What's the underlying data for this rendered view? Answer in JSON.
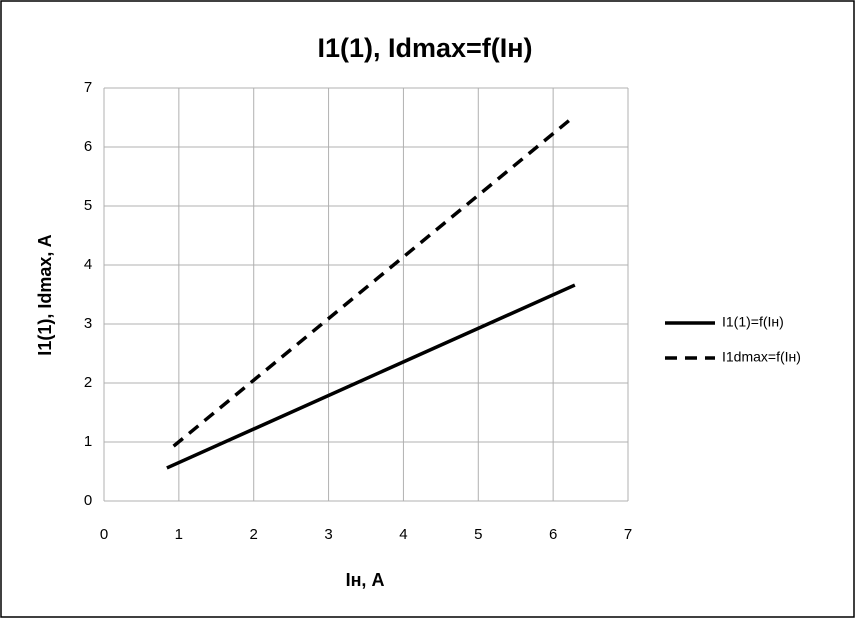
{
  "chart_data": {
    "type": "line",
    "title": "I1(1), Idmax=f(Iн)",
    "x_label": "Iн, A",
    "y_label": "I1(1), Idmax, A",
    "xlim": [
      0,
      7
    ],
    "xticks": [
      0,
      1,
      2,
      3,
      4,
      5,
      6,
      7
    ],
    "ylim": [
      0,
      7
    ],
    "yticks": [
      0,
      1,
      2,
      3,
      4,
      5,
      6,
      7
    ],
    "grid": true,
    "legend": "right",
    "series": [
      {
        "name": "I1(1)=f(Iн)",
        "color": "#000000",
        "dash": "solid",
        "x": [
          0.84,
          6.29
        ],
        "values": [
          0.56,
          3.66
        ]
      },
      {
        "name": "I1dmax=f(Iн)",
        "color": "#000000",
        "dash": "dashed",
        "x": [
          0.93,
          6.29
        ],
        "values": [
          0.93,
          6.53
        ]
      }
    ]
  }
}
